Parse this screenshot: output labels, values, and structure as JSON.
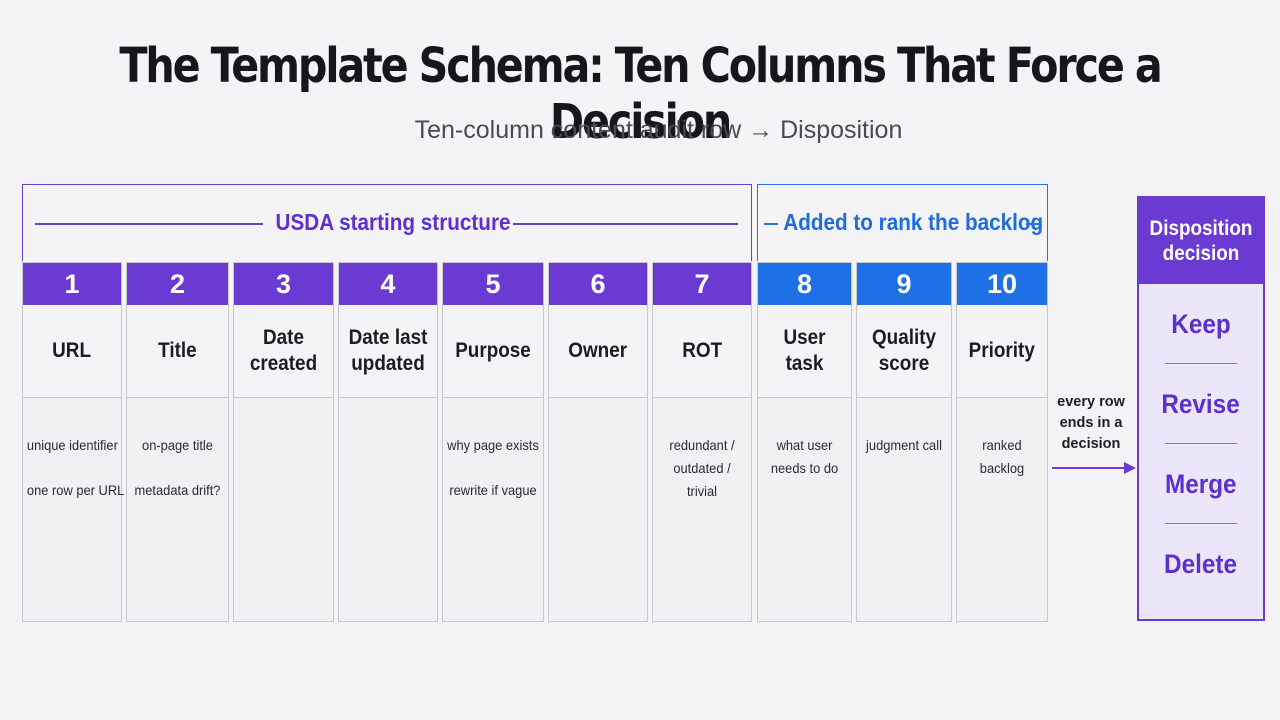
{
  "title": "The Template Schema: Ten Columns That Force a Decision",
  "subtitle": "Ten-column content audit row → Disposition",
  "groups": {
    "usda": {
      "label": "USDA starting structure",
      "color": "#6b3fd4"
    },
    "added": {
      "label": "Added to rank the backlog",
      "color": "#2a72e0"
    }
  },
  "columns": [
    {
      "num": "1",
      "label": "URL",
      "notes": [
        "unique identifier",
        "one row per URL"
      ]
    },
    {
      "num": "2",
      "label": "Title",
      "notes": [
        "on-page title",
        "metadata drift?"
      ]
    },
    {
      "num": "3",
      "label": "Date created",
      "notes": []
    },
    {
      "num": "4",
      "label": "Date last updated",
      "notes": []
    },
    {
      "num": "5",
      "label": "Purpose",
      "notes": [
        "why page exists",
        "rewrite if vague"
      ]
    },
    {
      "num": "6",
      "label": "Owner",
      "notes": []
    },
    {
      "num": "7",
      "label": "ROT",
      "notes": [
        "redundant /",
        "outdated /",
        "trivial"
      ]
    },
    {
      "num": "8",
      "label": "User task",
      "notes": [
        "what user",
        "needs to do"
      ]
    },
    {
      "num": "9",
      "label": "Quality score",
      "notes": [
        "judgment call"
      ]
    },
    {
      "num": "10",
      "label": "Priority",
      "notes": [
        "ranked",
        "backlog"
      ]
    }
  ],
  "arrow_label": "every row ends in a decision",
  "decision": {
    "title": "Disposition decision",
    "options": [
      "Keep",
      "Revise",
      "Merge",
      "Delete"
    ]
  },
  "colors": {
    "usda_accent": "#6a3ad2",
    "added_accent": "#1f6fe6",
    "decision_bg": "#ece6fb"
  }
}
